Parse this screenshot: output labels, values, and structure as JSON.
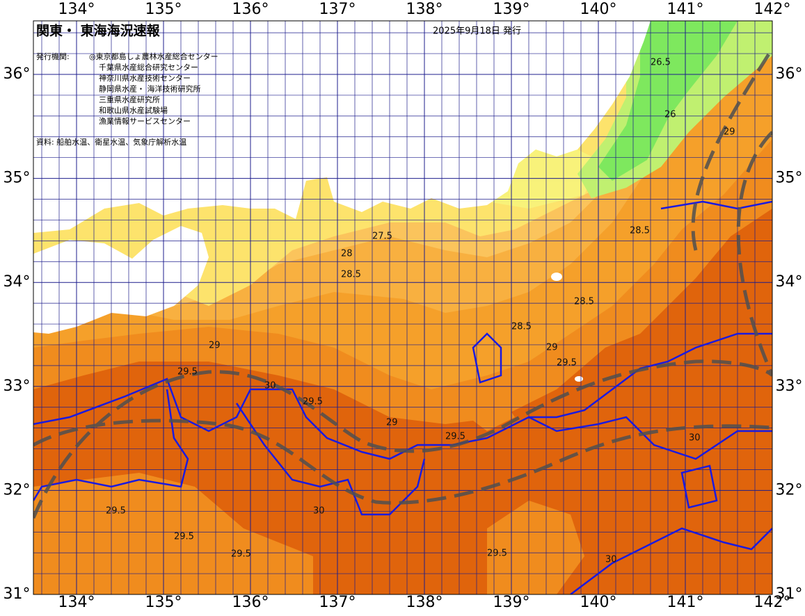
{
  "header": {
    "title": "関東・ 東海海況速報",
    "issued": "2025年9月18日 発行"
  },
  "publishers": {
    "label": "発行機関:",
    "items": [
      "◎東京都島しょ農林水産総合センター",
      "千葉県水産総合研究センター",
      "神奈川県水産技術センター",
      "静岡県水産・ 海洋技術研究所",
      "三重県水産研究所",
      "和歌山県水産試験場",
      "漁業情報サービスセンター"
    ]
  },
  "source": "資料: 船舶水温、衛星水温、気象庁解析水温",
  "axes": {
    "lon_top": [
      "134°",
      "135°",
      "136°",
      "137°",
      "138°",
      "139°",
      "140°",
      "141°",
      "142°"
    ],
    "lon_bottom": [
      "134°",
      "135°",
      "136°",
      "137°",
      "138°",
      "139°",
      "140°",
      "141°",
      "142°"
    ],
    "lat_left": [
      "36°",
      "35°",
      "34°",
      "33°",
      "32°",
      "31°"
    ],
    "lat_right": [
      "36°",
      "35°",
      "34°",
      "33°",
      "32°",
      "31°"
    ]
  },
  "contour_labels": [
    "26.5",
    "26",
    "27.5",
    "28",
    "28.5",
    "28.5",
    "28.5",
    "29",
    "29",
    "29",
    "29.5",
    "29.5",
    "29.5",
    "29.5",
    "30",
    "30",
    "30",
    "30",
    "29.5",
    "29.5",
    "29.5",
    "29.5",
    "29",
    "28.5"
  ]
}
